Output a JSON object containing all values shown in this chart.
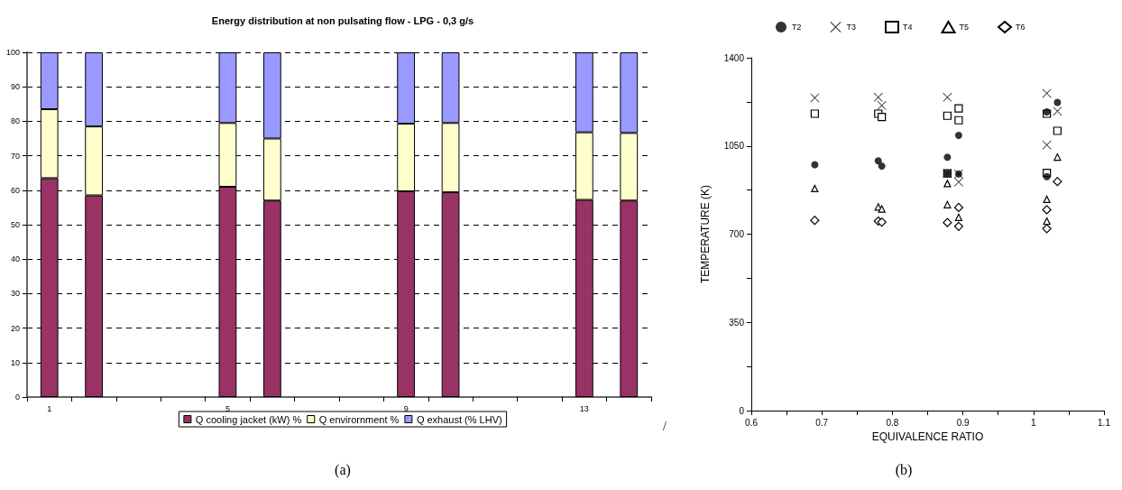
{
  "chart_data": [
    {
      "type": "bar",
      "title": "Energy distribution at non pulsating flow - LPG - 0,3 g/s",
      "stacked": true,
      "categories": [
        "1",
        null,
        null,
        null,
        "5",
        null,
        null,
        null,
        "9",
        null,
        null,
        null,
        "13",
        null
      ],
      "series": [
        {
          "name": "Q cooling jacket (kW) %",
          "color": "#993366",
          "values": [
            63.5,
            58.5,
            null,
            null,
            61,
            57,
            null,
            null,
            59.7,
            59.4,
            null,
            null,
            57.2,
            57
          ]
        },
        {
          "name": "Q envirornment %",
          "color": "#ffffcc",
          "values": [
            20,
            20,
            null,
            null,
            18.5,
            18,
            null,
            null,
            19.6,
            20.1,
            null,
            null,
            19.6,
            19.6
          ]
        },
        {
          "name": "Q exhaust (% LHV)",
          "color": "#9999ff",
          "values": [
            16.5,
            21.5,
            null,
            null,
            20.5,
            25,
            null,
            null,
            20.7,
            20.5,
            null,
            null,
            23.2,
            23.4
          ]
        }
      ],
      "ylim": [
        0,
        100
      ],
      "yticks": [
        0,
        10,
        20,
        30,
        40,
        50,
        60,
        70,
        80,
        90,
        100
      ],
      "grid": "y",
      "legend": "bottom",
      "annotations": [
        "(a)",
        "/"
      ]
    },
    {
      "type": "scatter",
      "xlabel": "EQUIVALENCE RATIO",
      "ylabel": "TEMPERATURE (K)",
      "legend": "top",
      "xlim": [
        0.6,
        1.1
      ],
      "xticks": [
        0.6,
        {
          "value": 0.65,
          "label": null
        },
        0.7,
        {
          "value": 0.75,
          "label": null
        },
        0.8,
        {
          "value": 0.85,
          "label": null
        },
        0.9,
        {
          "value": 0.95,
          "label": null
        },
        1.0,
        {
          "value": 1.05,
          "label": null
        },
        1.1
      ],
      "ylim": [
        0,
        1400
      ],
      "yticks": [
        0,
        {
          "value": 175,
          "label": null
        },
        350,
        {
          "value": 525,
          "label": null
        },
        700,
        {
          "value": 875,
          "label": null
        },
        1050,
        {
          "value": 1225,
          "label": null
        },
        1400
      ],
      "grid": false,
      "series": [
        {
          "name": "T2",
          "color": "#000000",
          "marker": "circle",
          "x": [
            0.69,
            0.78,
            0.785,
            0.878,
            0.878,
            0.894,
            0.894,
            1.019,
            1.019,
            1.034
          ],
          "values": [
            976,
            991,
            970,
            1005,
            941,
            1092,
            939,
            1185,
            928,
            1223
          ]
        },
        {
          "name": "T3",
          "color": "#000000",
          "marker": "cross",
          "x": [
            0.69,
            0.78,
            0.785,
            0.878,
            0.878,
            0.894,
            0.894,
            1.019,
            1.019,
            1.034
          ],
          "values": [
            1241,
            1243,
            1211,
            1243,
            941,
            939,
            907,
            1259,
            1054,
            1188
          ]
        },
        {
          "name": "T4",
          "color": "#000000",
          "marker": "square",
          "x": [
            0.69,
            0.78,
            0.785,
            0.878,
            0.878,
            0.894,
            0.894,
            1.019,
            1.019,
            1.034
          ],
          "values": [
            1178,
            1178,
            1165,
            1170,
            941,
            1199,
            1152,
            1178,
            943,
            1110
          ]
        },
        {
          "name": "T5",
          "color": "#000000",
          "marker": "triangle",
          "x": [
            0.69,
            0.78,
            0.785,
            0.878,
            0.878,
            0.894,
            1.019,
            1.019,
            1.034
          ],
          "values": [
            881,
            808,
            800,
            901,
            817,
            767,
            838,
            752,
            1006
          ]
        },
        {
          "name": "T6",
          "color": "#000000",
          "marker": "diamond",
          "x": [
            0.69,
            0.78,
            0.785,
            0.878,
            0.894,
            0.894,
            1.019,
            1.019,
            1.034
          ],
          "values": [
            755,
            752,
            748,
            746,
            806,
            731,
            797,
            722,
            909
          ]
        }
      ],
      "annotations": [
        "(b)"
      ]
    }
  ]
}
